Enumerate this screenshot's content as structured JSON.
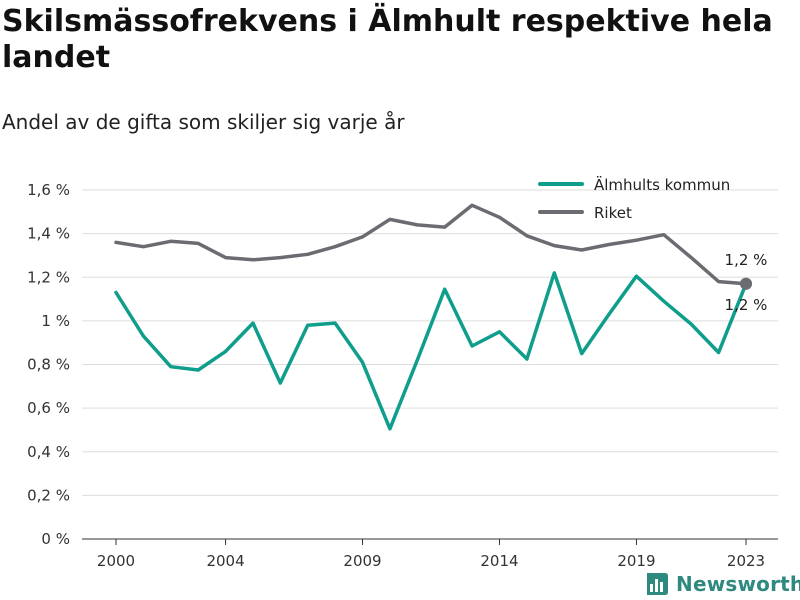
{
  "title": "Skilsmässofrekvens i Älmhult respektive hela landet",
  "subtitle": "Andel av de gifta som skiljer sig varje år",
  "brand": "Newsworthy",
  "colors": {
    "almhult": "#0f9e8c",
    "riket": "#6d6b72",
    "grid": "#dddddd",
    "brand": "#2e8a7e"
  },
  "chart_data": {
    "type": "line",
    "title": "Skilsmässofrekvens i Älmhult respektive hela landet",
    "subtitle": "Andel av de gifta som skiljer sig varje år",
    "x": [
      2000,
      2001,
      2002,
      2003,
      2004,
      2005,
      2006,
      2007,
      2008,
      2009,
      2010,
      2011,
      2012,
      2013,
      2014,
      2015,
      2016,
      2017,
      2018,
      2019,
      2020,
      2021,
      2022,
      2023
    ],
    "x_ticks": [
      2000,
      2004,
      2009,
      2014,
      2019,
      2023
    ],
    "x_tick_labels": [
      "2000",
      "2004",
      "2009",
      "2014",
      "2019",
      "2023"
    ],
    "ylim": [
      0,
      1.6
    ],
    "y_ticks": [
      0,
      0.2,
      0.4,
      0.6,
      0.8,
      1.0,
      1.2,
      1.4,
      1.6
    ],
    "y_tick_labels": [
      "0 %",
      "0,2 %",
      "0,4 %",
      "0,6 %",
      "0,8 %",
      "1 %",
      "1,2 %",
      "1,4 %",
      "1,6 %"
    ],
    "grid": "horizontal",
    "legend": "top-right",
    "series": [
      {
        "name": "Älmhults kommun",
        "color": "#0f9e8c",
        "end_label": "1,2 %",
        "values": [
          1.13,
          0.93,
          0.79,
          0.775,
          0.86,
          0.99,
          0.715,
          0.98,
          0.99,
          0.81,
          0.505,
          0.82,
          1.145,
          0.885,
          0.95,
          0.825,
          1.22,
          0.85,
          1.03,
          1.205,
          1.09,
          0.985,
          0.855,
          1.17
        ]
      },
      {
        "name": "Riket",
        "color": "#6d6b72",
        "end_label": "1,2 %",
        "values": [
          1.36,
          1.34,
          1.365,
          1.355,
          1.29,
          1.28,
          1.29,
          1.305,
          1.34,
          1.385,
          1.465,
          1.44,
          1.43,
          1.53,
          1.475,
          1.39,
          1.345,
          1.325,
          1.35,
          1.37,
          1.395,
          1.29,
          1.18,
          1.17
        ]
      }
    ]
  }
}
